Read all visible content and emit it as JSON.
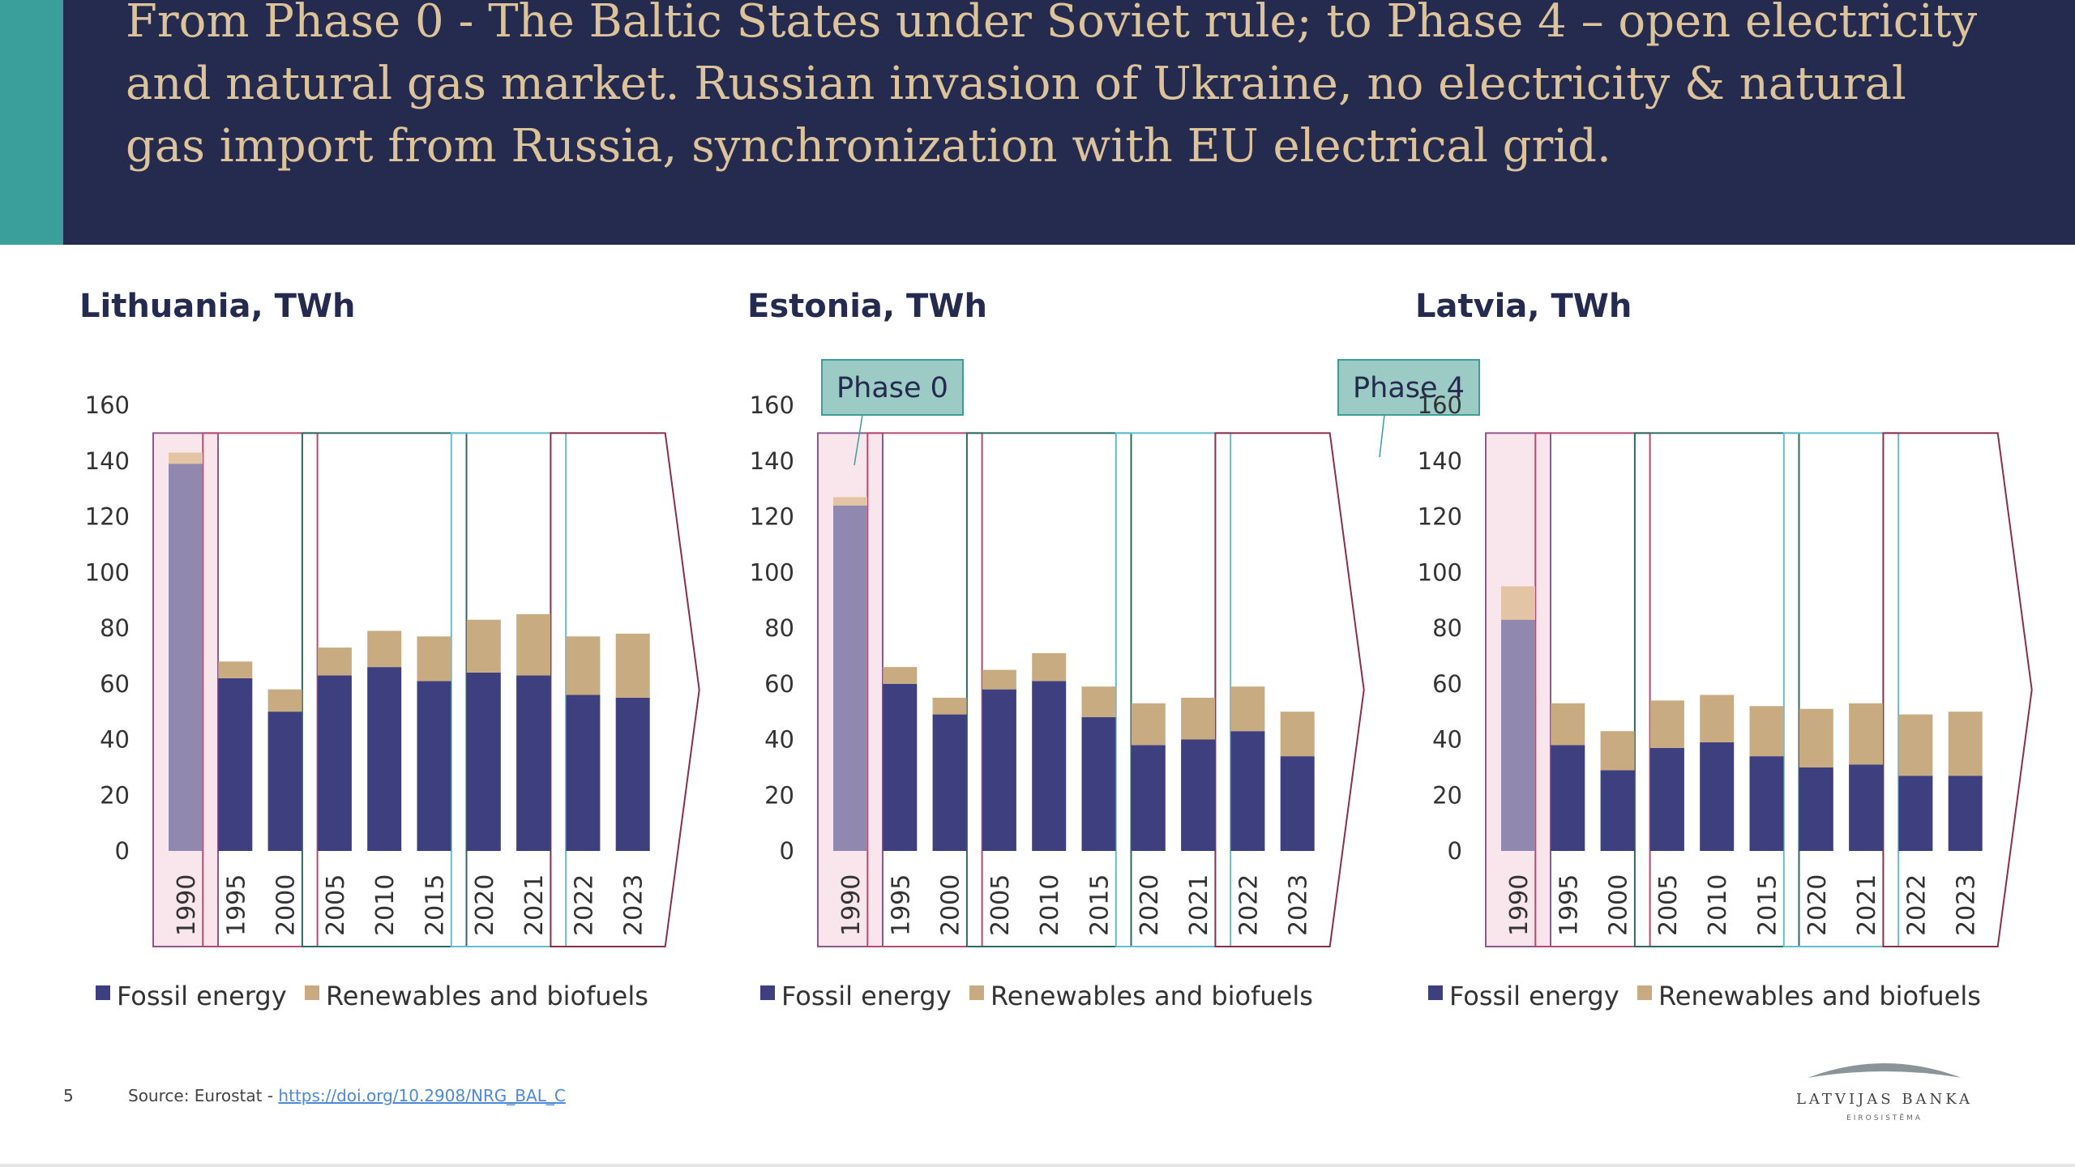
{
  "header": {
    "title": "From Phase 0 - The Baltic States under Soviet rule; to Phase 4 –  open electricity and natural gas market. Russian invasion of Ukraine, no electricity & natural gas import from Russia, synchronization with EU electrical grid."
  },
  "colors": {
    "header_bg": "#252a4f",
    "accent": "#3a9e9a",
    "title_text": "#ddc39a",
    "fossil": "#3d3f7e",
    "renewables": "#c9ab82",
    "fossil_phase0": "#9188b0",
    "renewables_phase0": "#e3c5a6",
    "phase0_fill": "#f8e6ec",
    "phase_borders": [
      "#8b5a8a",
      "#b84a72",
      "#2e6a63",
      "#62c0d4",
      "#8b2e4a"
    ],
    "callout_fill": "#9ccac5",
    "callout_stroke": "#3a9e9a"
  },
  "chart_data": [
    {
      "type": "bar",
      "stacked": true,
      "title": "Lithuania, TWh",
      "categories": [
        "1990",
        "1995",
        "2000",
        "2005",
        "2010",
        "2015",
        "2020",
        "2021",
        "2022",
        "2023"
      ],
      "series": [
        {
          "name": "Fossil energy",
          "values": [
            139,
            62,
            50,
            63,
            66,
            61,
            64,
            63,
            56,
            55
          ]
        },
        {
          "name": "Renewables and biofuels",
          "values": [
            4,
            6,
            8,
            10,
            13,
            16,
            19,
            22,
            21,
            23
          ]
        }
      ],
      "ylim": [
        0,
        160
      ],
      "yticks": [
        0,
        20,
        40,
        60,
        80,
        100,
        120,
        140,
        160
      ],
      "callouts": [],
      "legend": "bottom-left"
    },
    {
      "type": "bar",
      "stacked": true,
      "title": "Estonia, TWh",
      "categories": [
        "1990",
        "1995",
        "2000",
        "2005",
        "2010",
        "2015",
        "2020",
        "2021",
        "2022",
        "2023"
      ],
      "series": [
        {
          "name": "Fossil energy",
          "values": [
            124,
            60,
            49,
            58,
            61,
            48,
            38,
            40,
            43,
            34
          ]
        },
        {
          "name": "Renewables and biofuels",
          "values": [
            3,
            6,
            6,
            7,
            10,
            11,
            15,
            15,
            16,
            16
          ]
        }
      ],
      "ylim": [
        0,
        160
      ],
      "yticks": [
        0,
        20,
        40,
        60,
        80,
        100,
        120,
        140,
        160
      ],
      "callouts": [
        "Phase 0",
        "Phase 4"
      ],
      "legend": "bottom-left"
    },
    {
      "type": "bar",
      "stacked": true,
      "title": "Latvia, TWh",
      "categories": [
        "1990",
        "1995",
        "2000",
        "2005",
        "2010",
        "2015",
        "2020",
        "2021",
        "2022",
        "2023"
      ],
      "series": [
        {
          "name": "Fossil energy",
          "values": [
            83,
            38,
            29,
            37,
            39,
            34,
            30,
            31,
            27,
            27
          ]
        },
        {
          "name": "Renewables and biofuels",
          "values": [
            12,
            15,
            14,
            17,
            17,
            18,
            21,
            22,
            22,
            23
          ]
        }
      ],
      "ylim": [
        0,
        160
      ],
      "yticks": [
        0,
        20,
        40,
        60,
        80,
        100,
        120,
        140,
        160
      ],
      "callouts": [],
      "legend": "bottom-left"
    }
  ],
  "footer": {
    "page_number": "5",
    "source_prefix": "Source: Eurostat - ",
    "source_link": "https://doi.org/10.2908/NRG_BAL_C"
  },
  "logo": {
    "name": "LATVIJAS BANKA",
    "tagline": "EIROSISTĒMA"
  }
}
